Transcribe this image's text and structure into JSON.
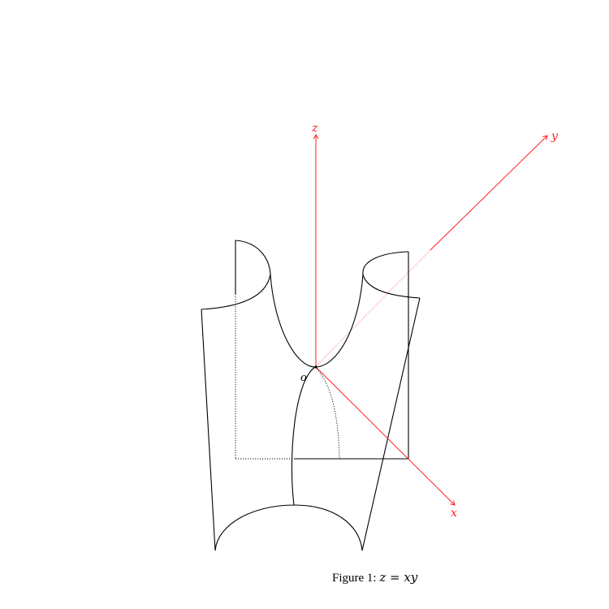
{
  "axes": {
    "x_label": "x",
    "y_label": "y",
    "z_label": "z",
    "origin_label": "o",
    "color": "#ff2020"
  },
  "surface": {
    "color": "#000000"
  },
  "caption": {
    "prefix": "Figure 1:",
    "equation": "z = xy"
  }
}
